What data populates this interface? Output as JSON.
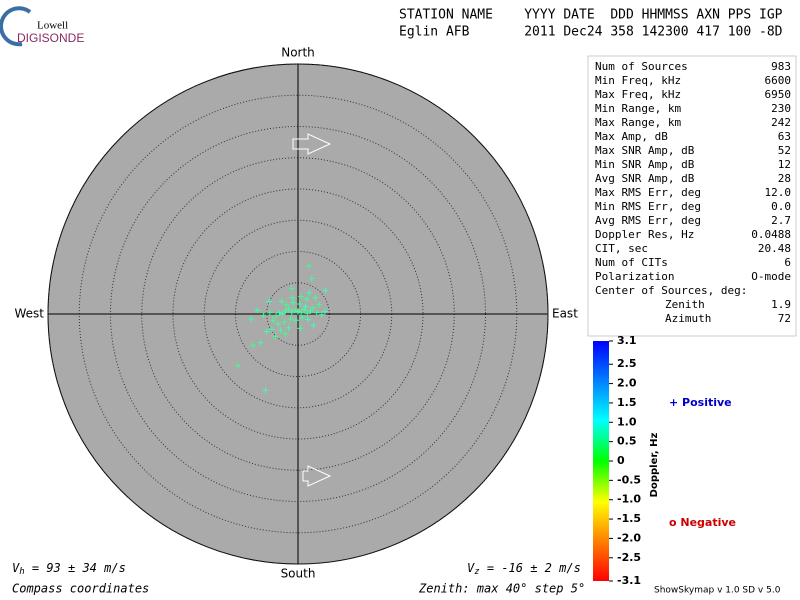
{
  "logo": {
    "top": "Lowell",
    "bottom": "DIGISONDE"
  },
  "header": {
    "line1": "STATION NAME    YYYY DATE  DDD HHMMSS AXN PPS IGP",
    "line2": "Eglin AFB       2011 Dec24 358 142300 417 100 -8D"
  },
  "stats": {
    "rows": [
      [
        "Num of Sources",
        "983"
      ],
      [
        "Min Freq, kHz",
        "6600"
      ],
      [
        "Max Freq, kHz",
        "6950"
      ],
      [
        "Min Range, km",
        "230"
      ],
      [
        "Max Range, km",
        "242"
      ],
      [
        "Max Amp, dB",
        "63"
      ],
      [
        "Max SNR Amp, dB",
        "52"
      ],
      [
        "Min SNR Amp, dB",
        "12"
      ],
      [
        "Avg SNR Amp, dB",
        "28"
      ],
      [
        "Max RMS Err, deg",
        "12.0"
      ],
      [
        "Min RMS Err, deg",
        "0.0"
      ],
      [
        "Avg RMS Err, deg",
        "2.7"
      ],
      [
        "Doppler Res, Hz",
        "0.0488"
      ],
      [
        "CIT, sec",
        "20.48"
      ],
      [
        "Num of CITs",
        "6"
      ],
      [
        "Polarization",
        "O-mode"
      ]
    ],
    "center_title": "Center of Sources, deg:",
    "center_rows": [
      [
        "Zenith",
        "1.9"
      ],
      [
        "Azimuth",
        "72"
      ]
    ]
  },
  "legend": {
    "positive": "+ Positive",
    "negative": "o Negative"
  },
  "footer": {
    "vh_symbol": "V",
    "vh_sub": "h",
    "vh_text": " = 93 ± 34 m/s",
    "vz_symbol": "V",
    "vz_sub": "z",
    "vz_text": " = -16 ± 2 m/s",
    "coords": "Compass coordinates",
    "zenith": "Zenith: max 40°  step 5°",
    "version": "ShowSkymap v 1.0   SD v 5.0"
  },
  "chart_data": {
    "type": "skymap",
    "directions": {
      "north": "North",
      "south": "South",
      "east": "East",
      "west": "West"
    },
    "rlim": [
      0,
      40
    ],
    "rticks": [
      5,
      10,
      15,
      20,
      25,
      30,
      35,
      40
    ],
    "x": [
      -2.0,
      -1.5,
      -1.0,
      -0.5,
      0,
      0.5,
      1.0,
      1.5,
      2.0,
      -2.5,
      -3,
      -3.5,
      -4.5,
      -5.5,
      -6.5,
      -1.8,
      -0.8,
      0.3,
      1.2,
      2.4,
      3.0,
      3.8,
      4.3,
      -1.2,
      -0.3,
      0.7,
      1.6,
      -2.2,
      -3.2,
      -4.0,
      -1.5,
      -2.8,
      -4.2,
      -3.6,
      -5.0,
      -2.0,
      1.4,
      2.8,
      1.8,
      0.5,
      -0.9,
      -2.6,
      4.4,
      1.8,
      2.2,
      -9.6,
      -5.2,
      -7.2,
      -6.0,
      0.4,
      2.5,
      3.4,
      -7.5,
      -1.0,
      -4.6
    ],
    "y": [
      0.5,
      0.8,
      0.3,
      0.6,
      0.4,
      0.2,
      0.7,
      0.1,
      0.5,
      0,
      0.2,
      -0.3,
      0.2,
      -0.2,
      0.6,
      1.5,
      1.8,
      1.6,
      1.2,
      1.0,
      0.2,
      -0.1,
      0.4,
      -0.8,
      -1.0,
      -0.6,
      -0.9,
      -1.3,
      -1.6,
      -1.0,
      -2.2,
      -2.6,
      -2.5,
      -3.6,
      -2.8,
      -3.2,
      2.4,
      2.6,
      3.4,
      2.8,
      2.6,
      2.0,
      3.8,
      7.7,
      5.7,
      -8.3,
      -12.2,
      -5.0,
      -4.6,
      -2.3,
      -1.8,
      1.5,
      -0.8,
      4.1,
      2.0
    ],
    "doppler": [
      0.8,
      0.7,
      0.9,
      0.6,
      0.8,
      0.7,
      0.9,
      0.6,
      0.8,
      0.7,
      0.9,
      0.6,
      0.8,
      0.7,
      0.9,
      0.6,
      0.8,
      0.7,
      0.9,
      0.6,
      0.8,
      0.7,
      0.9,
      0.6,
      0.8,
      0.7,
      0.9,
      0.6,
      0.8,
      0.7,
      0.9,
      0.6,
      0.8,
      0.7,
      0.9,
      0.6,
      0.8,
      0.7,
      0.9,
      0.6,
      0.8,
      0.7,
      0.9,
      0.6,
      0.8,
      0.7,
      0.9,
      0.6,
      0.8,
      0.7,
      0.9,
      0.6,
      0.8,
      0.7,
      0.9
    ],
    "colorbar": {
      "label": "Doppler, Hz",
      "lim": [
        -3.1,
        3.1
      ],
      "ticks": [
        3.1,
        2.5,
        {
          "value": 2,
          "label": "2.0"
        },
        1.5,
        {
          "value": 1,
          "label": "1.0"
        },
        0.5,
        0,
        -0.5,
        {
          "value": -1,
          "label": "-1.0"
        },
        -1.5,
        {
          "value": -2,
          "label": "-2.0"
        },
        -2.5,
        -3.1
      ]
    }
  }
}
